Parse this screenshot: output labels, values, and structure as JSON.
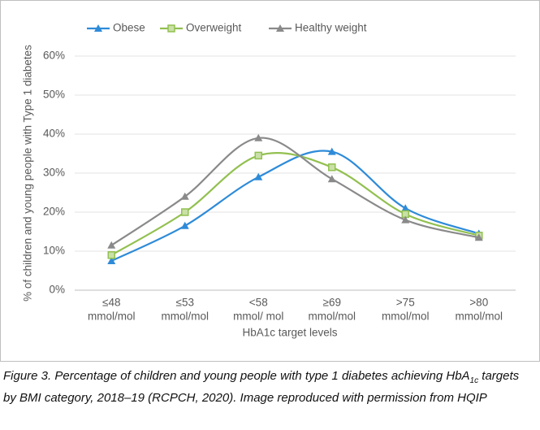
{
  "chart_data": {
    "type": "line",
    "y_axis_label": "% of children and young people with Type 1 diabetes",
    "x_axis_label": "HbA1c target levels",
    "categories": [
      [
        "≤48",
        "mmol/mol"
      ],
      [
        "≤53",
        "mmol/mol"
      ],
      [
        "<58",
        "mmol/ mol"
      ],
      [
        "≥69",
        "mmol/mol"
      ],
      [
        ">75",
        "mmol/mol"
      ],
      [
        ">80",
        "mmol/mol"
      ]
    ],
    "series": [
      {
        "name": "Obese",
        "color": "#2e8bd8",
        "marker": "triangle",
        "values": [
          7.5,
          16.5,
          29,
          35.5,
          21,
          14.5
        ]
      },
      {
        "name": "Overweight",
        "color": "#92c050",
        "marker": "square",
        "values": [
          9,
          20,
          34.5,
          31.5,
          19.5,
          14
        ]
      },
      {
        "name": "Healthy weight",
        "color": "#8a8a8a",
        "marker": "triangle",
        "values": [
          11.5,
          24,
          39,
          28.5,
          18,
          13.5
        ]
      }
    ],
    "ylim": [
      0,
      60
    ],
    "yticks": [
      {
        "value": 0,
        "label": "0%"
      },
      {
        "value": 10,
        "label": "10%"
      },
      {
        "value": 20,
        "label": "20%"
      },
      {
        "value": 30,
        "label": "30%"
      },
      {
        "value": 40,
        "label": "40%"
      },
      {
        "value": 50,
        "label": "50%"
      },
      {
        "value": 60,
        "label": "60%"
      }
    ],
    "grid": true,
    "legend": "top"
  },
  "caption": {
    "line1_start": "Figure 3. Percentage of children and young people with type 1 diabetes achieving HbA",
    "subscript": "1c",
    "line1_end": " targets",
    "line2": "by BMI category, 2018–19 (RCPCH, 2020). Image reproduced with permission from HQIP"
  }
}
